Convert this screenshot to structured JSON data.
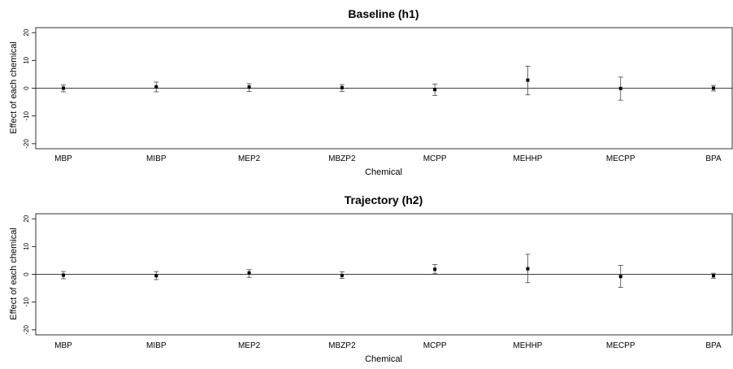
{
  "chart_data": [
    {
      "type": "scatter",
      "title": "Baseline (h1)",
      "xlabel": "Chemical",
      "ylabel": "Effect of each chemical",
      "ylim": [
        -20,
        20
      ],
      "yticks": [
        "20",
        "10",
        "0",
        "-10",
        "-20"
      ],
      "reference_line": 0,
      "error_bars": true,
      "categories": [
        "MBP",
        "MIBP",
        "MEP2",
        "MBZP2",
        "MCPP",
        "MEHHP",
        "MECPP",
        "BPA"
      ],
      "estimates": [
        0.0,
        0.5,
        0.4,
        0.2,
        -0.5,
        2.9,
        -0.1,
        0.0
      ],
      "lower": [
        -1.3,
        -1.3,
        -1.2,
        -1.2,
        -2.6,
        -2.4,
        -4.3,
        -1.0
      ],
      "upper": [
        1.2,
        2.2,
        1.6,
        1.3,
        1.5,
        7.9,
        4.0,
        1.0
      ]
    },
    {
      "type": "scatter",
      "title": "Trajectory (h2)",
      "xlabel": "Chemical",
      "ylabel": "Effect of each chemical",
      "ylim": [
        -20,
        20
      ],
      "yticks": [
        "20",
        "10",
        "0",
        "-10",
        "-20"
      ],
      "reference_line": 0,
      "error_bars": true,
      "categories": [
        "MBP",
        "MIBP",
        "MEP2",
        "MBZP2",
        "MCPP",
        "MEHHP",
        "MECPP",
        "BPA"
      ],
      "estimates": [
        -0.3,
        -0.5,
        0.5,
        -0.4,
        1.8,
        2.0,
        -0.8,
        -0.5
      ],
      "lower": [
        -1.6,
        -1.9,
        -1.1,
        -1.5,
        0.2,
        -3.0,
        -4.7,
        -1.4
      ],
      "upper": [
        1.0,
        1.0,
        1.7,
        0.9,
        3.5,
        7.2,
        3.2,
        0.4
      ]
    }
  ]
}
